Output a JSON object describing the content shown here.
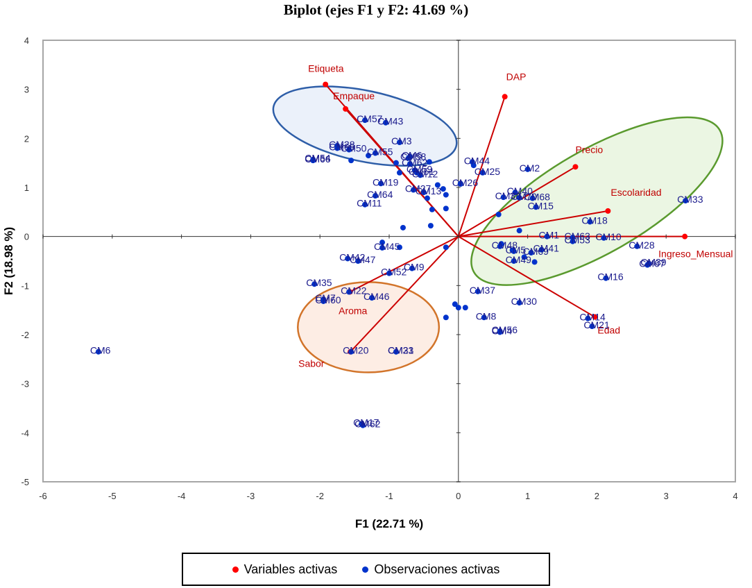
{
  "chart_data": {
    "type": "scatter",
    "title": "Biplot (ejes F1 y F2: 41.69 %)",
    "xlabel": "F1 (22.71 %)",
    "ylabel": "F2 (18.98 %)",
    "xlim": [
      -6,
      4
    ],
    "ylim": [
      -5,
      4
    ],
    "xticks": [
      -6,
      -5,
      -4,
      -3,
      -2,
      -1,
      0,
      1,
      2,
      3,
      4
    ],
    "yticks": [
      -5,
      -4,
      -3,
      -2,
      -1,
      0,
      1,
      2,
      3,
      4
    ],
    "legend": [
      "Variables activas",
      "Observaciones activas"
    ],
    "colors": {
      "variables": "#ff0000",
      "observations": "#0033cc",
      "vector": "#cc0000",
      "ellipse_blue": "#2e5ea8",
      "ellipse_green": "#5a9a2e",
      "ellipse_orange": "#d2742a"
    },
    "variables": [
      {
        "name": "Etiqueta",
        "x": -1.92,
        "y": 3.1
      },
      {
        "name": "Empaque",
        "x": -1.63,
        "y": 2.6
      },
      {
        "name": "DAP",
        "x": 0.67,
        "y": 2.85
      },
      {
        "name": "Precio",
        "x": 1.69,
        "y": 1.42
      },
      {
        "name": "Escolaridad",
        "x": 2.16,
        "y": 0.52
      },
      {
        "name": "Ingreso_Mensual",
        "x": 3.27,
        "y": 0.0
      },
      {
        "name": "Edad",
        "x": 1.97,
        "y": -1.64
      },
      {
        "name": "Aroma",
        "x": -1.57,
        "y": -1.13
      },
      {
        "name": "Sabor",
        "x": -1.56,
        "y": -2.35
      }
    ],
    "observations": [
      {
        "label": "CM57",
        "x": -1.35,
        "y": 2.37
      },
      {
        "label": "CM43",
        "x": -1.05,
        "y": 2.32
      },
      {
        "label": "CM28",
        "x": -1.75,
        "y": 1.85
      },
      {
        "label": "CM65",
        "x": -1.75,
        "y": 1.8
      },
      {
        "label": "CM50",
        "x": -1.58,
        "y": 1.77
      },
      {
        "label": "CM54",
        "x": -2.1,
        "y": 1.57
      },
      {
        "label": "CM66",
        "x": -2.1,
        "y": 1.55
      },
      {
        "label": "CM55",
        "x": -1.2,
        "y": 1.7
      },
      {
        "label": "CM3",
        "x": -0.85,
        "y": 1.92
      },
      {
        "label": "CM6",
        "x": -0.7,
        "y": 1.63
      },
      {
        "label": "CM58",
        "x": -0.72,
        "y": 1.6
      },
      {
        "label": "CM62",
        "x": -0.7,
        "y": 1.48
      },
      {
        "label": "CM59",
        "x": -0.63,
        "y": 1.35
      },
      {
        "label": "CM51",
        "x": -0.6,
        "y": 1.3
      },
      {
        "label": "CM12",
        "x": -0.55,
        "y": 1.25
      },
      {
        "label": "CM64",
        "x": -1.2,
        "y": 0.83
      },
      {
        "label": "CM19",
        "x": -1.12,
        "y": 1.08
      },
      {
        "label": "CM13",
        "x": -0.5,
        "y": 0.9
      },
      {
        "label": "CM27",
        "x": -0.65,
        "y": 0.95
      },
      {
        "label": "CM11",
        "x": -1.35,
        "y": 0.65
      },
      {
        "label": "CM42",
        "x": -1.6,
        "y": -0.45
      },
      {
        "label": "CM47",
        "x": -1.45,
        "y": -0.5
      },
      {
        "label": "CM45",
        "x": -1.1,
        "y": -0.23
      },
      {
        "label": "CM9",
        "x": -0.67,
        "y": -0.65
      },
      {
        "label": "CM35",
        "x": -2.08,
        "y": -0.97
      },
      {
        "label": "CM52",
        "x": -1.0,
        "y": -0.75
      },
      {
        "label": "CM22",
        "x": -1.58,
        "y": -1.13
      },
      {
        "label": "CM60",
        "x": -1.95,
        "y": -1.32
      },
      {
        "label": "CM46",
        "x": -1.25,
        "y": -1.25
      },
      {
        "label": "CM7",
        "x": -1.95,
        "y": -1.28
      },
      {
        "label": "CM31",
        "x": -0.9,
        "y": -2.35
      },
      {
        "label": "CM23",
        "x": -0.9,
        "y": -2.35
      },
      {
        "label": "CM20",
        "x": -1.55,
        "y": -2.35
      },
      {
        "label": "CM6",
        "x": -5.2,
        "y": -2.35
      },
      {
        "label": "CM17",
        "x": -1.4,
        "y": -3.82
      },
      {
        "label": "CM62",
        "x": -1.38,
        "y": -3.85
      },
      {
        "label": "CM44",
        "x": 0.2,
        "y": 1.52
      },
      {
        "label": "CM25",
        "x": 0.35,
        "y": 1.3
      },
      {
        "label": "CM26",
        "x": 0.03,
        "y": 1.07
      },
      {
        "label": "CM2",
        "x": 1.0,
        "y": 1.37
      },
      {
        "label": "CM40",
        "x": 0.82,
        "y": 0.9
      },
      {
        "label": "CM68",
        "x": 1.07,
        "y": 0.78
      },
      {
        "label": "CM70",
        "x": 0.88,
        "y": 0.79
      },
      {
        "label": "CM38",
        "x": 0.65,
        "y": 0.8
      },
      {
        "label": "CM15",
        "x": 1.12,
        "y": 0.6
      },
      {
        "label": "CM18",
        "x": 1.9,
        "y": 0.3
      },
      {
        "label": "CM33",
        "x": 3.28,
        "y": 0.73
      },
      {
        "label": "CM1",
        "x": 1.28,
        "y": 0.0
      },
      {
        "label": "CM63",
        "x": 1.65,
        "y": -0.02
      },
      {
        "label": "CM10",
        "x": 2.1,
        "y": -0.03
      },
      {
        "label": "CM53",
        "x": 1.65,
        "y": -0.1
      },
      {
        "label": "CM28",
        "x": 2.58,
        "y": -0.2
      },
      {
        "label": "CM39",
        "x": 2.75,
        "y": -0.55
      },
      {
        "label": "CM67",
        "x": 2.73,
        "y": -0.58
      },
      {
        "label": "CM16",
        "x": 2.13,
        "y": -0.85
      },
      {
        "label": "CM5",
        "x": 0.8,
        "y": -0.3
      },
      {
        "label": "CM69",
        "x": 1.05,
        "y": -0.33
      },
      {
        "label": "CM49",
        "x": 0.8,
        "y": -0.5
      },
      {
        "label": "CM41",
        "x": 1.2,
        "y": -0.27
      },
      {
        "label": "CM48",
        "x": 0.6,
        "y": -0.2
      },
      {
        "label": "CM14",
        "x": 1.87,
        "y": -1.67
      },
      {
        "label": "CM21",
        "x": 1.93,
        "y": -1.83
      },
      {
        "label": "CM37",
        "x": 0.28,
        "y": -1.12
      },
      {
        "label": "CM30",
        "x": 0.88,
        "y": -1.35
      },
      {
        "label": "CM8",
        "x": 0.37,
        "y": -1.65
      },
      {
        "label": "CM56",
        "x": 0.6,
        "y": -1.93
      },
      {
        "label": "CM4",
        "x": 0.6,
        "y": -1.95
      }
    ],
    "extra_points": [
      {
        "x": -1.3,
        "y": 1.65
      },
      {
        "x": -1.55,
        "y": 1.55
      },
      {
        "x": -0.9,
        "y": 1.5
      },
      {
        "x": -0.85,
        "y": 1.3
      },
      {
        "x": -0.42,
        "y": 1.52
      },
      {
        "x": -0.3,
        "y": 1.05
      },
      {
        "x": -0.22,
        "y": 0.97
      },
      {
        "x": -0.45,
        "y": 0.78
      },
      {
        "x": -0.38,
        "y": 0.55
      },
      {
        "x": -0.18,
        "y": 0.85
      },
      {
        "x": -0.18,
        "y": 0.57
      },
      {
        "x": 0.03,
        "y": 1.08
      },
      {
        "x": -0.8,
        "y": 0.18
      },
      {
        "x": -0.4,
        "y": 0.22
      },
      {
        "x": -1.1,
        "y": -0.12
      },
      {
        "x": -0.85,
        "y": -0.22
      },
      {
        "x": -0.18,
        "y": -0.22
      },
      {
        "x": 0.58,
        "y": 0.45
      },
      {
        "x": 0.88,
        "y": 0.12
      },
      {
        "x": 0.62,
        "y": -0.15
      },
      {
        "x": 0.78,
        "y": -0.28
      },
      {
        "x": 0.95,
        "y": -0.42
      },
      {
        "x": 1.1,
        "y": -0.52
      },
      {
        "x": 0.0,
        "y": -1.45
      },
      {
        "x": -0.05,
        "y": -1.38
      },
      {
        "x": 0.1,
        "y": -1.45
      },
      {
        "x": -0.18,
        "y": -1.65
      },
      {
        "x": 0.22,
        "y": 1.45
      }
    ],
    "ellipses": [
      {
        "name": "group-etiqueta",
        "cx": -1.35,
        "cy": 2.25,
        "rx": 1.35,
        "ry": 0.72,
        "angle": -12,
        "color": "blue"
      },
      {
        "name": "group-ingreso",
        "cx": 2.0,
        "cy": 0.72,
        "rx": 2.05,
        "ry": 1.05,
        "angle": 30,
        "color": "green"
      },
      {
        "name": "group-sabor",
        "cx": -1.3,
        "cy": -1.85,
        "rx": 1.02,
        "ry": 0.92,
        "angle": 0,
        "color": "orange"
      }
    ]
  }
}
